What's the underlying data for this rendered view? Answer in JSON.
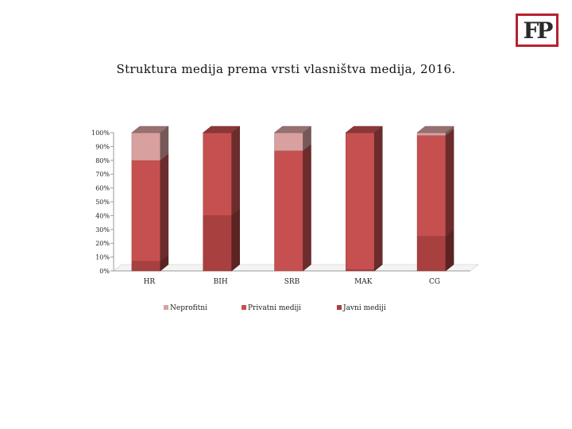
{
  "logo": {
    "text": "FP",
    "color": "#b6212f"
  },
  "chart_data": {
    "type": "bar",
    "stacked": true,
    "percent": true,
    "three_d": true,
    "title": "Struktura medija prema vrsti vlasništva medija, 2016.",
    "categories": [
      "HR",
      "BIH",
      "SRB",
      "MAK",
      "CG"
    ],
    "yticks": [
      "0%",
      "10%",
      "20%",
      "30%",
      "40%",
      "50%",
      "60%",
      "70%",
      "80%",
      "90%",
      "100%"
    ],
    "ylim": [
      0,
      100
    ],
    "legend_position": "bottom",
    "series": [
      {
        "name": "Javni mediji",
        "values": [
          7,
          40,
          0,
          1,
          25
        ],
        "color": "#a8403f"
      },
      {
        "name": "Privatni mediji",
        "values": [
          73,
          60,
          87,
          99,
          73
        ],
        "color": "#c5504f"
      },
      {
        "name": "Neprofitni",
        "values": [
          20,
          0,
          13,
          0,
          2
        ],
        "color": "#d9a0a0"
      }
    ],
    "legend_order": [
      "Neprofitni",
      "Privatni mediji",
      "Javni mediji"
    ]
  }
}
